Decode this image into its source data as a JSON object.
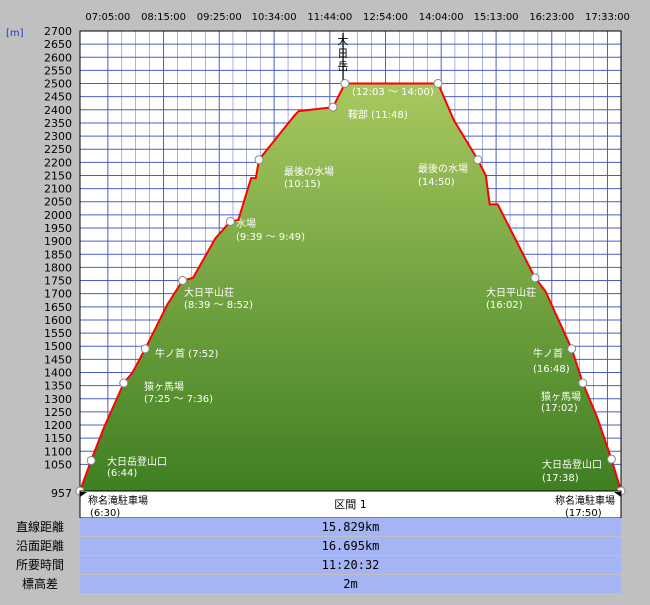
{
  "chart_data": {
    "type": "area",
    "unit_label": "[m]",
    "y_ticks": [
      2700,
      2650,
      2600,
      2550,
      2500,
      2450,
      2400,
      2350,
      2300,
      2250,
      2200,
      2150,
      2100,
      2050,
      2000,
      1950,
      1900,
      1850,
      1800,
      1750,
      1700,
      1650,
      1600,
      1550,
      1500,
      1450,
      1400,
      1350,
      1300,
      1250,
      1200,
      1150,
      1100,
      1050
    ],
    "y_base_label": "957",
    "ylim": [
      957,
      2700
    ],
    "x_ticks": [
      "07:05:00",
      "08:15:00",
      "09:25:00",
      "10:34:00",
      "11:44:00",
      "12:54:00",
      "14:04:00",
      "15:13:00",
      "16:23:00",
      "17:33:00"
    ],
    "x_time_range": [
      "06:30",
      "17:50"
    ],
    "profile": [
      [
        "06:30",
        957
      ],
      [
        "06:44",
        1065
      ],
      [
        "07:00",
        1190
      ],
      [
        "07:25",
        1360
      ],
      [
        "07:36",
        1400
      ],
      [
        "07:52",
        1490
      ],
      [
        "08:20",
        1660
      ],
      [
        "08:39",
        1750
      ],
      [
        "08:52",
        1760
      ],
      [
        "09:20",
        1910
      ],
      [
        "09:39",
        1975
      ],
      [
        "09:49",
        1980
      ],
      [
        "10:00",
        2090
      ],
      [
        "10:05",
        2140
      ],
      [
        "10:11",
        2140
      ],
      [
        "10:15",
        2210
      ],
      [
        "11:00",
        2380
      ],
      [
        "11:05",
        2395
      ],
      [
        "11:48",
        2410
      ],
      [
        "12:03",
        2500
      ],
      [
        "12:15",
        2500
      ],
      [
        "13:00",
        2500
      ],
      [
        "14:00",
        2500
      ],
      [
        "14:20",
        2360
      ],
      [
        "14:50",
        2210
      ],
      [
        "15:00",
        2150
      ],
      [
        "15:05",
        2040
      ],
      [
        "15:15",
        2040
      ],
      [
        "16:02",
        1760
      ],
      [
        "16:15",
        1710
      ],
      [
        "16:48",
        1490
      ],
      [
        "17:02",
        1360
      ],
      [
        "17:20",
        1230
      ],
      [
        "17:38",
        1070
      ],
      [
        "17:50",
        957
      ]
    ],
    "points": [
      {
        "name": "称名滝駐車場",
        "time": "06:30",
        "label_time": "(6:30)",
        "elev": 957
      },
      {
        "name": "大日岳登山口",
        "time": "06:44",
        "label_time": "(6:44)",
        "elev": 1065
      },
      {
        "name": "猿ヶ馬場",
        "time": "07:25",
        "label_time": "(7:25 ～ 7:36)",
        "elev": 1360
      },
      {
        "name": "牛ノ首",
        "time": "07:52",
        "label_time": "(7:52)",
        "elev": 1490
      },
      {
        "name": "大日平山荘",
        "time": "08:39",
        "label_time": "(8:39 ～ 8:52)",
        "elev": 1750
      },
      {
        "name": "水場",
        "time": "09:39",
        "label_time": "(9:39 ～ 9:49)",
        "elev": 1975
      },
      {
        "name": "最後の水場",
        "time": "10:15",
        "label_time": "(10:15)",
        "elev": 2210
      },
      {
        "name": "鞍部",
        "time": "11:48",
        "label_time": "(11:48)",
        "elev": 2410
      },
      {
        "name": "大日岳",
        "time": "12:03",
        "label_time": "(12:03 ～ 14:00)",
        "elev": 2500
      },
      {
        "name": "",
        "time": "14:00",
        "label_time": "",
        "elev": 2500
      },
      {
        "name": "最後の水場",
        "time": "14:50",
        "label_time": "(14:50)",
        "elev": 2210
      },
      {
        "name": "大日平山荘",
        "time": "16:02",
        "label_time": "(16:02)",
        "elev": 1760
      },
      {
        "name": "牛ノ首",
        "time": "16:48",
        "label_time": "(16:48)",
        "elev": 1490
      },
      {
        "name": "猿ヶ馬場",
        "time": "17:02",
        "label_time": "(17:02)",
        "elev": 1360
      },
      {
        "name": "大日岳登山口",
        "time": "17:38",
        "label_time": "(17:38)",
        "elev": 1070
      },
      {
        "name": "称名滝駐車場",
        "time": "17:50",
        "label_time": "(17:50)",
        "elev": 957
      }
    ],
    "colors": {
      "fill_top": "#a8c860",
      "fill_bottom": "#3f7f22",
      "line": "#ff0000",
      "plot_bg": "#ffffff",
      "grid": "#4a5fc8",
      "outer": "#c0c0c0"
    }
  },
  "segment_label": "区間 1",
  "stats": [
    {
      "label": "直線距離",
      "value": "15.829km"
    },
    {
      "label": "沿面距離",
      "value": "16.695km"
    },
    {
      "label": "所要時間",
      "value": "11:20:32"
    },
    {
      "label": "標高差",
      "value": "2m"
    }
  ]
}
